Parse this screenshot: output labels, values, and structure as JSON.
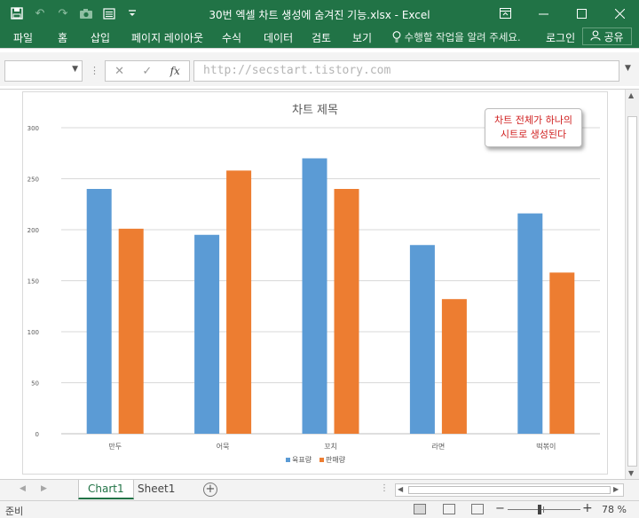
{
  "window": {
    "title": "30번 엑셀 차트 생성에 숨겨진 기능.xlsx - Excel",
    "qat_icons": [
      "save-icon",
      "undo-icon",
      "redo-icon",
      "camera-icon",
      "form-icon",
      "customize-icon"
    ],
    "controls": [
      "ribbon-display-icon",
      "minimize-icon",
      "maximize-icon",
      "close-icon"
    ]
  },
  "ribbon": {
    "tabs": [
      "파일",
      "홈",
      "삽입",
      "페이지 레이아웃",
      "수식",
      "데이터",
      "검토",
      "보기"
    ],
    "tell_me": "수행할 작업을 알려 주세요.",
    "login": "로그인",
    "share": "공유"
  },
  "formula_bar": {
    "name_box": "",
    "cancel": "✕",
    "enter": "✓",
    "fx": "fx",
    "value": "http://secstart.tistory.com"
  },
  "callout": {
    "line1": "차트 전체가 하나의",
    "line2": "시트로 생성된다",
    "color": "#d02020"
  },
  "chart_data": {
    "type": "bar",
    "title": "차트 제목",
    "categories": [
      "만두",
      "어묵",
      "꼬치",
      "라면",
      "떡볶이"
    ],
    "series": [
      {
        "name": "육표량",
        "color": "#5b9bd5",
        "values": [
          240,
          195,
          270,
          185,
          216
        ]
      },
      {
        "name": "판매량",
        "color": "#ed7d31",
        "values": [
          201,
          258,
          240,
          132,
          158
        ]
      }
    ],
    "ylim": [
      0,
      300
    ],
    "yticks": [
      0,
      50,
      100,
      150,
      200,
      250,
      300
    ],
    "grid": true,
    "legend": "bottom"
  },
  "sheet_tabs": {
    "tabs": [
      "Chart1",
      "Sheet1"
    ],
    "active": "Chart1",
    "add": "+"
  },
  "status": {
    "ready": "준비",
    "zoom": "78 %",
    "zoom_fraction": 0.78
  }
}
